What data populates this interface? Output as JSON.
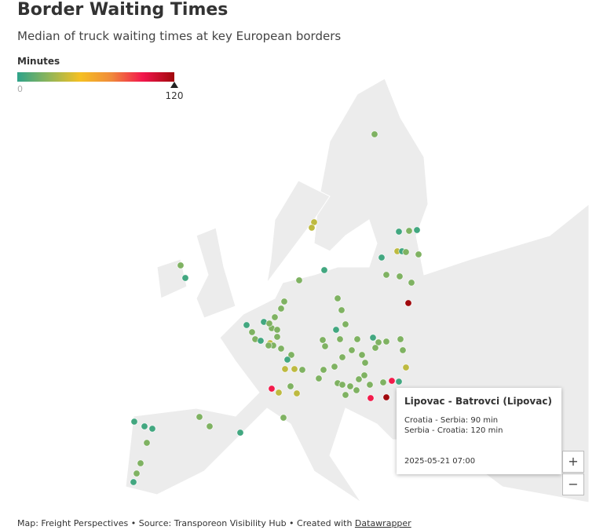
{
  "header": {
    "title": "Border Waiting Times",
    "subtitle": "Median of truck waiting times at key European borders"
  },
  "legend": {
    "title": "Minutes",
    "min": 0,
    "max": 120,
    "colors": [
      "#2ea38a",
      "#8fb55a",
      "#f5c022",
      "#f08a3b",
      "#f2164c",
      "#a0080c"
    ]
  },
  "map": {
    "points": [
      20,
      35,
      35,
      5,
      20,
      5,
      35,
      5,
      20,
      20,
      5,
      20,
      20,
      5,
      20,
      20,
      5,
      120,
      20,
      20,
      20,
      5,
      20,
      20,
      5,
      20,
      20,
      20,
      20,
      20,
      20,
      20,
      20,
      20,
      20,
      20,
      20,
      5,
      20,
      5,
      20,
      20,
      5,
      35,
      20,
      20,
      20,
      20,
      20,
      5,
      35,
      35,
      20,
      20,
      20,
      20,
      20,
      20,
      20,
      20,
      20,
      20,
      20,
      20,
      20,
      20,
      20,
      20,
      35,
      95,
      5,
      120,
      95,
      95,
      35,
      20,
      35,
      20,
      20,
      20,
      5,
      5,
      5,
      5,
      20,
      20,
      20,
      5,
      20,
      20
    ]
  },
  "tooltip": {
    "title": "Lipovac - Batrovci (Lipovac)",
    "lines": [
      "Croatia - Serbia: 90 min",
      "Serbia - Croatia: 120 min"
    ],
    "date": "2025-05-21 07:00"
  },
  "zoom": {
    "in": "+",
    "out": "−"
  },
  "footer": {
    "text": "Map: Freight Perspectives • Source: Transporeon Visibility Hub • Created with",
    "link": "Datawrapper"
  }
}
